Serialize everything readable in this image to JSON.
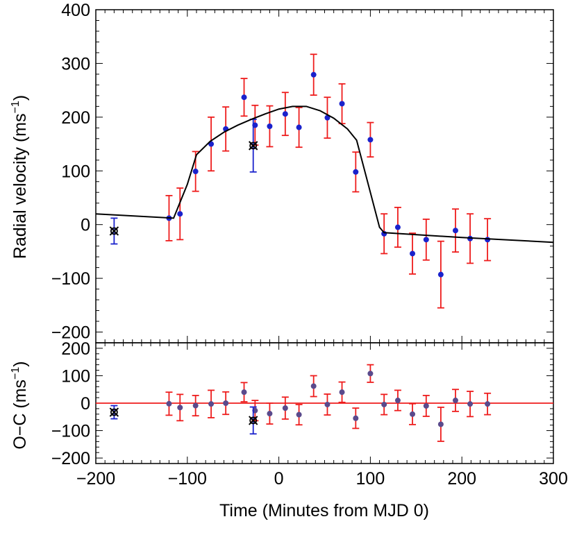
{
  "chart_data": [
    {
      "type": "scatter",
      "panel": "top",
      "xlabel": "",
      "ylabel": "Radial velocity (ms",
      "ylabel_superscript": "−1",
      "ylabel_suffix": ")",
      "xlim": [
        -200,
        300
      ],
      "ylim": [
        -220,
        400
      ],
      "xticks": [
        -200,
        -100,
        0,
        100,
        200,
        300
      ],
      "yticks": [
        -200,
        -100,
        0,
        100,
        200,
        300,
        400
      ],
      "ytick_labels": [
        "−200",
        "−100",
        "0",
        "100",
        "200",
        "300",
        "400"
      ],
      "series": [
        {
          "color": "#1a22cc",
          "errorbar_color": "#ee1c1c",
          "x": [
            -120,
            -108,
            -91,
            -74,
            -58,
            -38,
            -26,
            -10,
            7,
            22,
            38,
            53,
            69,
            84,
            100,
            115,
            130,
            146,
            161,
            177,
            193,
            209,
            228
          ],
          "y": [
            12,
            20,
            99,
            150,
            178,
            237,
            185,
            183,
            206,
            181,
            279,
            199,
            225,
            98,
            158,
            -17,
            -5,
            -54,
            -28,
            -93,
            -11,
            -26,
            -28
          ],
          "yerr": [
            42,
            48,
            37,
            50,
            41,
            35,
            37,
            38,
            40,
            37,
            38,
            38,
            37,
            37,
            32,
            37,
            37,
            38,
            38,
            62,
            40,
            46,
            39
          ]
        },
        {
          "color": "#000000",
          "errorbar_color": "#1a22cc",
          "marker": "x",
          "x": [
            -180,
            -28
          ],
          "y": [
            -12,
            147
          ],
          "yerr": [
            24,
            49
          ]
        },
        {
          "type": "line",
          "color": "#000000",
          "x": [
            -200,
            -115,
            -100,
            -90,
            -75,
            -60,
            -45,
            -30,
            -15,
            0,
            15,
            30,
            45,
            60,
            75,
            85,
            100,
            110,
            115,
            200,
            300
          ],
          "y": [
            20,
            12,
            75,
            130,
            155,
            172,
            185,
            196,
            206,
            215,
            220,
            220,
            212,
            198,
            178,
            157,
            60,
            -5,
            -15,
            -24,
            -33
          ]
        }
      ]
    },
    {
      "type": "scatter",
      "panel": "bottom",
      "xlabel": "Time (Minutes from MJD 0)",
      "ylabel": "O−C (ms",
      "ylabel_superscript": "−1",
      "ylabel_suffix": ")",
      "xlim": [
        -200,
        300
      ],
      "ylim": [
        -220,
        220
      ],
      "xticks": [
        -200,
        -100,
        0,
        100,
        200,
        300
      ],
      "xtick_labels": [
        "−200",
        "−100",
        "0",
        "100",
        "200",
        "300"
      ],
      "yticks": [
        -200,
        -100,
        0,
        100,
        200
      ],
      "ytick_labels": [
        "−200",
        "−100",
        "0",
        "100",
        "200"
      ],
      "zero_line_color": "#ee1c1c",
      "series": [
        {
          "color": "#5a4a8c",
          "errorbar_color": "#ee1c1c",
          "x": [
            -120,
            -108,
            -91,
            -74,
            -58,
            -38,
            -26,
            -10,
            7,
            22,
            38,
            53,
            69,
            84,
            100,
            115,
            130,
            146,
            161,
            177,
            193,
            209,
            228
          ],
          "y": [
            -2,
            -16,
            -9,
            -3,
            0,
            40,
            -27,
            -38,
            -18,
            -42,
            62,
            -5,
            40,
            -55,
            108,
            -5,
            10,
            -40,
            -10,
            -77,
            10,
            -3,
            -3
          ],
          "yerr": [
            42,
            48,
            37,
            50,
            41,
            35,
            37,
            38,
            40,
            37,
            38,
            38,
            37,
            37,
            32,
            37,
            37,
            38,
            38,
            62,
            40,
            46,
            39
          ]
        },
        {
          "color": "#000000",
          "errorbar_color": "#1a22cc",
          "marker": "x",
          "x": [
            -180,
            -28
          ],
          "y": [
            -33,
            -63
          ],
          "yerr": [
            24,
            49
          ]
        }
      ]
    }
  ]
}
